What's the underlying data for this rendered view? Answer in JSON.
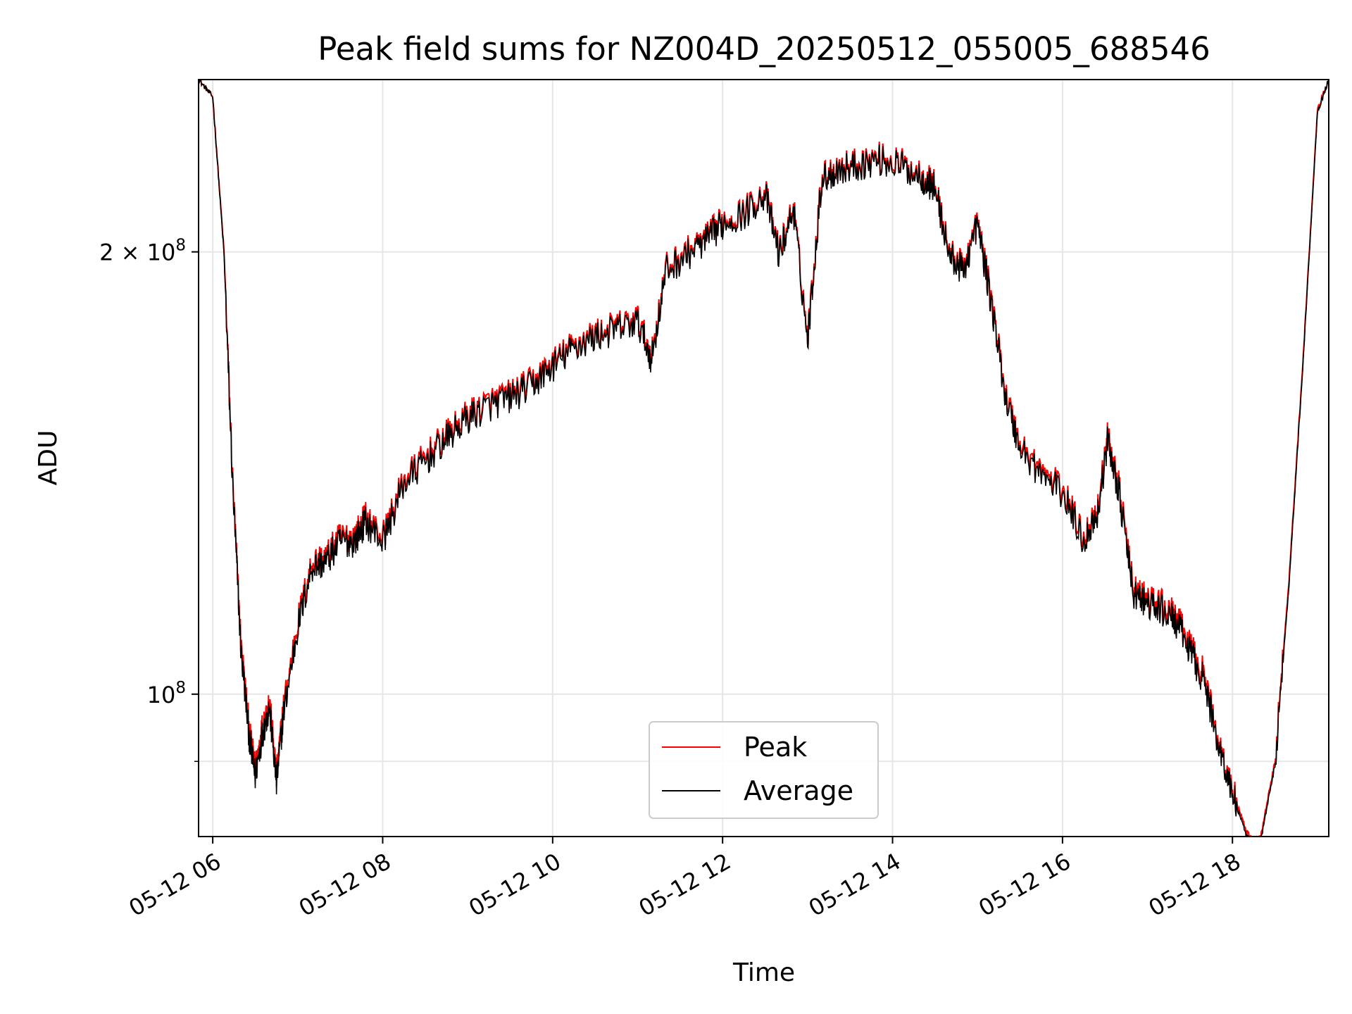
{
  "chart_data": {
    "type": "line",
    "title": "Peak field sums for NZ004D_20250512_055005_688546",
    "xlabel": "Time",
    "ylabel": "ADU",
    "yscale": "log",
    "xlim": [
      "05-12 05:50",
      "05-12 19:08"
    ],
    "ylim": [
      80000000,
      262000000
    ],
    "x_ticks": [
      "05-12 06",
      "05-12 08",
      "05-12 10",
      "05-12 12",
      "05-12 14",
      "05-12 16",
      "05-12 18"
    ],
    "y_ticks": [
      {
        "value": 100000000,
        "label": "10",
        "exp": "8",
        "prefix": ""
      },
      {
        "value": 200000000,
        "label": "10",
        "exp": "8",
        "prefix": "2 × "
      }
    ],
    "grid": true,
    "legend": {
      "position": "lower-center",
      "entries": [
        "Peak",
        "Average"
      ]
    },
    "series": [
      {
        "name": "Peak",
        "color": "#ff0000",
        "x": [
          "05-12 05:50",
          "05-12 06:00",
          "05-12 06:08",
          "05-12 06:14",
          "05-12 06:20",
          "05-12 06:26",
          "05-12 06:30",
          "05-12 06:35",
          "05-12 06:40",
          "05-12 06:45",
          "05-12 06:50",
          "05-12 07:00",
          "05-12 07:10",
          "05-12 07:20",
          "05-12 07:30",
          "05-12 07:40",
          "05-12 07:48",
          "05-12 08:00",
          "05-12 08:15",
          "05-12 08:30",
          "05-12 08:45",
          "05-12 09:00",
          "05-12 09:15",
          "05-12 09:30",
          "05-12 09:45",
          "05-12 10:00",
          "05-12 10:15",
          "05-12 10:30",
          "05-12 10:45",
          "05-12 11:00",
          "05-12 11:10",
          "05-12 11:20",
          "05-12 11:35",
          "05-12 11:50",
          "05-12 12:00",
          "05-12 12:15",
          "05-12 12:30",
          "05-12 12:40",
          "05-12 12:50",
          "05-12 13:00",
          "05-12 13:10",
          "05-12 13:20",
          "05-12 13:35",
          "05-12 13:50",
          "05-12 14:05",
          "05-12 14:20",
          "05-12 14:30",
          "05-12 14:40",
          "05-12 14:50",
          "05-12 15:00",
          "05-12 15:10",
          "05-12 15:20",
          "05-12 15:30",
          "05-12 15:45",
          "05-12 16:00",
          "05-12 16:15",
          "05-12 16:25",
          "05-12 16:32",
          "05-12 16:40",
          "05-12 16:50",
          "05-12 17:00",
          "05-12 17:10",
          "05-12 17:20",
          "05-12 17:30",
          "05-12 17:40",
          "05-12 17:50",
          "05-12 18:00",
          "05-12 18:10",
          "05-12 18:15",
          "05-12 18:20",
          "05-12 18:30",
          "05-12 18:40",
          "05-12 18:50",
          "05-12 19:00",
          "05-12 19:08"
        ],
        "values": [
          262000000,
          255000000,
          200000000,
          140000000,
          108000000,
          94000000,
          89000000,
          95000000,
          99000000,
          88000000,
          98000000,
          112000000,
          123000000,
          124000000,
          128000000,
          128000000,
          132000000,
          128000000,
          140000000,
          145000000,
          150000000,
          155000000,
          158000000,
          160000000,
          163000000,
          168000000,
          173000000,
          176000000,
          178000000,
          180000000,
          170000000,
          195000000,
          200000000,
          205000000,
          210000000,
          213000000,
          220000000,
          200000000,
          215000000,
          175000000,
          225000000,
          228000000,
          230000000,
          232000000,
          230000000,
          226000000,
          222000000,
          200000000,
          195000000,
          210000000,
          185000000,
          160000000,
          148000000,
          142000000,
          138000000,
          128000000,
          134000000,
          150000000,
          138000000,
          118000000,
          116000000,
          115000000,
          113000000,
          108000000,
          103000000,
          93000000,
          86000000,
          80500000,
          79500000,
          80000000,
          90000000,
          120000000,
          170000000,
          250000000,
          262000000
        ]
      },
      {
        "name": "Average",
        "color": "#000000",
        "x": [
          "05-12 05:50",
          "05-12 06:00",
          "05-12 06:08",
          "05-12 06:14",
          "05-12 06:20",
          "05-12 06:26",
          "05-12 06:30",
          "05-12 06:35",
          "05-12 06:40",
          "05-12 06:45",
          "05-12 06:50",
          "05-12 07:00",
          "05-12 07:10",
          "05-12 07:20",
          "05-12 07:30",
          "05-12 07:40",
          "05-12 07:48",
          "05-12 08:00",
          "05-12 08:15",
          "05-12 08:30",
          "05-12 08:45",
          "05-12 09:00",
          "05-12 09:15",
          "05-12 09:30",
          "05-12 09:45",
          "05-12 10:00",
          "05-12 10:15",
          "05-12 10:30",
          "05-12 10:45",
          "05-12 11:00",
          "05-12 11:10",
          "05-12 11:20",
          "05-12 11:35",
          "05-12 11:50",
          "05-12 12:00",
          "05-12 12:15",
          "05-12 12:30",
          "05-12 12:40",
          "05-12 12:50",
          "05-12 13:00",
          "05-12 13:10",
          "05-12 13:20",
          "05-12 13:35",
          "05-12 13:50",
          "05-12 14:05",
          "05-12 14:20",
          "05-12 14:30",
          "05-12 14:40",
          "05-12 14:50",
          "05-12 15:00",
          "05-12 15:10",
          "05-12 15:20",
          "05-12 15:30",
          "05-12 15:45",
          "05-12 16:00",
          "05-12 16:15",
          "05-12 16:25",
          "05-12 16:32",
          "05-12 16:40",
          "05-12 16:50",
          "05-12 17:00",
          "05-12 17:10",
          "05-12 17:20",
          "05-12 17:30",
          "05-12 17:40",
          "05-12 17:50",
          "05-12 18:00",
          "05-12 18:10",
          "05-12 18:15",
          "05-12 18:20",
          "05-12 18:30",
          "05-12 18:40",
          "05-12 18:50",
          "05-12 19:00",
          "05-12 19:08"
        ],
        "values": [
          262000000,
          255000000,
          199000000,
          139000000,
          107000000,
          93000000,
          88000000,
          94000000,
          98000000,
          87000000,
          97000000,
          111000000,
          122000000,
          123000000,
          127000000,
          127000000,
          131000000,
          127000000,
          139000000,
          144000000,
          149000000,
          154000000,
          157000000,
          159000000,
          162000000,
          167000000,
          172000000,
          175000000,
          177000000,
          179000000,
          169000000,
          194000000,
          199000000,
          204000000,
          209000000,
          212000000,
          219000000,
          199000000,
          214000000,
          174000000,
          224000000,
          227000000,
          229000000,
          231000000,
          229000000,
          225000000,
          221000000,
          199000000,
          194000000,
          209000000,
          184000000,
          159000000,
          147000000,
          141000000,
          137000000,
          127000000,
          133000000,
          149000000,
          137000000,
          117000000,
          115000000,
          114000000,
          112000000,
          107000000,
          102000000,
          92500000,
          85500000,
          80000000,
          79000000,
          79500000,
          89500000,
          119000000,
          169000000,
          249000000,
          262000000
        ]
      }
    ]
  }
}
